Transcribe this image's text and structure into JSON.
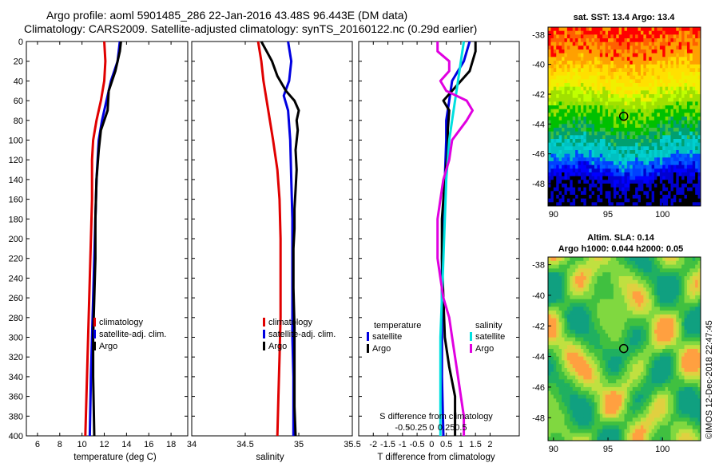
{
  "header": {
    "line1": "Argo profile: aoml 5901485_286 22-Jan-2016 43.48S 96.443E (DM data)",
    "line2": "Climatology: CARS2009. Satellite-adjusted climatology: synTS_20160122.nc (0.29d earlier)"
  },
  "colors": {
    "climatology": "#e00000",
    "satellite": "#0000e0",
    "argo": "#000000",
    "salinity_sat": "#00e0e0",
    "salinity_argo": "#e000e0"
  },
  "chart_data": [
    {
      "type": "line",
      "id": "temperature",
      "xlabel": "temperature (deg C)",
      "ylabel": "",
      "xlim": [
        5,
        19.5
      ],
      "ylim": [
        400,
        0
      ],
      "xticks": [
        6,
        8,
        10,
        12,
        14,
        16,
        18
      ],
      "yticks": [
        0,
        20,
        40,
        60,
        80,
        100,
        120,
        140,
        160,
        180,
        200,
        220,
        240,
        260,
        280,
        300,
        320,
        340,
        360,
        380,
        400
      ],
      "legend": [
        "climatology",
        "satellite-adj. clim.",
        "Argo"
      ],
      "series": [
        {
          "name": "climatology",
          "color": "#e00000",
          "points": [
            [
              12.0,
              0
            ],
            [
              12.1,
              20
            ],
            [
              12.0,
              40
            ],
            [
              11.7,
              60
            ],
            [
              11.3,
              80
            ],
            [
              11.0,
              100
            ],
            [
              10.9,
              120
            ],
            [
              10.9,
              160
            ],
            [
              10.8,
              200
            ],
            [
              10.7,
              240
            ],
            [
              10.6,
              280
            ],
            [
              10.5,
              320
            ],
            [
              10.4,
              360
            ],
            [
              10.3,
              400
            ]
          ]
        },
        {
          "name": "satellite-adj. clim.",
          "color": "#0000e0",
          "points": [
            [
              13.4,
              0
            ],
            [
              13.2,
              20
            ],
            [
              12.6,
              40
            ],
            [
              12.2,
              60
            ],
            [
              11.8,
              80
            ],
            [
              11.5,
              100
            ],
            [
              11.3,
              140
            ],
            [
              11.2,
              180
            ],
            [
              11.1,
              220
            ],
            [
              11.0,
              260
            ],
            [
              10.9,
              300
            ],
            [
              10.8,
              340
            ],
            [
              10.7,
              400
            ]
          ]
        },
        {
          "name": "Argo",
          "color": "#000000",
          "points": [
            [
              13.5,
              0
            ],
            [
              13.4,
              10
            ],
            [
              13.0,
              30
            ],
            [
              12.4,
              50
            ],
            [
              12.3,
              70
            ],
            [
              11.7,
              90
            ],
            [
              11.5,
              110
            ],
            [
              11.3,
              140
            ],
            [
              11.2,
              180
            ],
            [
              11.2,
              220
            ],
            [
              11.1,
              260
            ],
            [
              11.0,
              300
            ],
            [
              11.0,
              340
            ],
            [
              11.1,
              400
            ]
          ]
        }
      ]
    },
    {
      "type": "line",
      "id": "salinity",
      "xlabel": "salinity",
      "ylabel": "",
      "xlim": [
        34,
        35.5
      ],
      "ylim": [
        400,
        0
      ],
      "xticks": [
        34,
        34.5,
        35,
        35.5
      ],
      "xtick_labels": [
        "34",
        "34.5",
        "35",
        "35.5"
      ],
      "legend": [
        "climatology",
        "satellite-adj. clim.",
        "Argo"
      ],
      "series": [
        {
          "name": "climatology",
          "color": "#e00000",
          "points": [
            [
              34.62,
              0
            ],
            [
              34.65,
              20
            ],
            [
              34.67,
              40
            ],
            [
              34.7,
              60
            ],
            [
              34.73,
              80
            ],
            [
              34.76,
              100
            ],
            [
              34.8,
              130
            ],
            [
              34.82,
              160
            ],
            [
              34.83,
              200
            ],
            [
              34.83,
              240
            ],
            [
              34.83,
              280
            ],
            [
              34.82,
              320
            ],
            [
              34.81,
              360
            ],
            [
              34.8,
              400
            ]
          ]
        },
        {
          "name": "satellite-adj. clim.",
          "color": "#0000e0",
          "points": [
            [
              34.9,
              0
            ],
            [
              34.93,
              20
            ],
            [
              34.91,
              40
            ],
            [
              34.86,
              55
            ],
            [
              34.9,
              70
            ],
            [
              34.92,
              100
            ],
            [
              34.93,
              140
            ],
            [
              34.94,
              180
            ],
            [
              34.94,
              220
            ],
            [
              34.94,
              260
            ],
            [
              34.94,
              300
            ],
            [
              34.95,
              340
            ],
            [
              34.95,
              400
            ]
          ]
        },
        {
          "name": "Argo",
          "color": "#000000",
          "points": [
            [
              34.65,
              0
            ],
            [
              34.7,
              10
            ],
            [
              34.75,
              20
            ],
            [
              34.8,
              35
            ],
            [
              34.88,
              50
            ],
            [
              34.96,
              60
            ],
            [
              35.0,
              70
            ],
            [
              34.98,
              80
            ],
            [
              34.99,
              90
            ],
            [
              34.97,
              110
            ],
            [
              34.98,
              130
            ],
            [
              34.97,
              150
            ],
            [
              34.96,
              170
            ],
            [
              34.96,
              190
            ],
            [
              34.95,
              210
            ],
            [
              34.95,
              250
            ],
            [
              34.96,
              290
            ],
            [
              34.96,
              330
            ],
            [
              34.96,
              370
            ],
            [
              34.97,
              400
            ]
          ]
        }
      ]
    },
    {
      "type": "line",
      "id": "difference",
      "xlabel": "T difference from climatology",
      "xlabel_top": "S difference from climatology",
      "xlim": [
        -2.5,
        3
      ],
      "ylim": [
        400,
        0
      ],
      "xticks": [
        -2,
        -1.5,
        -1,
        -0.5,
        0,
        0.5,
        1,
        1.5,
        2
      ],
      "xtick_labels": [
        "-2",
        "-1.5",
        "-1",
        "-0.5",
        "0",
        "0.5",
        "1",
        "1.5",
        "2"
      ],
      "top_xticks": [
        -1,
        -0.5,
        0,
        0.5,
        1
      ],
      "top_xtick_labels": [
        "-0.5",
        "-0.25",
        "0",
        "0.25",
        "0.5"
      ],
      "legend_temperature_title": "temperature",
      "legend_salinity_title": "salinity",
      "legend_temperature": [
        "satellite",
        "Argo"
      ],
      "legend_salinity": [
        "satellite",
        "Argo"
      ],
      "series": [
        {
          "name": "T satellite",
          "color": "#0000e0",
          "points": [
            [
              1.3,
              0
            ],
            [
              1.1,
              20
            ],
            [
              0.7,
              40
            ],
            [
              0.6,
              60
            ],
            [
              0.5,
              80
            ],
            [
              0.5,
              100
            ],
            [
              0.45,
              140
            ],
            [
              0.4,
              180
            ],
            [
              0.35,
              220
            ],
            [
              0.35,
              260
            ],
            [
              0.35,
              300
            ],
            [
              0.35,
              340
            ],
            [
              0.4,
              400
            ]
          ]
        },
        {
          "name": "T Argo",
          "color": "#000000",
          "points": [
            [
              1.5,
              0
            ],
            [
              1.5,
              10
            ],
            [
              1.3,
              30
            ],
            [
              0.7,
              50
            ],
            [
              0.4,
              60
            ],
            [
              0.6,
              70
            ],
            [
              0.55,
              90
            ],
            [
              0.55,
              110
            ],
            [
              0.45,
              140
            ],
            [
              0.35,
              180
            ],
            [
              0.35,
              220
            ],
            [
              0.4,
              260
            ],
            [
              0.45,
              300
            ],
            [
              0.6,
              330
            ],
            [
              0.8,
              360
            ],
            [
              0.8,
              400
            ]
          ]
        },
        {
          "name": "S satellite",
          "color": "#00e0e0",
          "points": [
            [
              1.1,
              0
            ],
            [
              1.0,
              20
            ],
            [
              0.9,
              40
            ],
            [
              0.8,
              60
            ],
            [
              0.7,
              80
            ],
            [
              0.6,
              100
            ],
            [
              0.5,
              140
            ],
            [
              0.45,
              180
            ],
            [
              0.4,
              220
            ],
            [
              0.35,
              260
            ],
            [
              0.3,
              300
            ],
            [
              0.3,
              340
            ],
            [
              0.3,
              400
            ]
          ]
        },
        {
          "name": "S Argo",
          "color": "#e000e0",
          "points": [
            [
              0.2,
              0
            ],
            [
              0.2,
              10
            ],
            [
              0.6,
              20
            ],
            [
              0.6,
              30
            ],
            [
              0.3,
              40
            ],
            [
              0.5,
              50
            ],
            [
              1.2,
              60
            ],
            [
              1.4,
              70
            ],
            [
              1.2,
              80
            ],
            [
              0.7,
              100
            ],
            [
              0.6,
              120
            ],
            [
              0.4,
              140
            ],
            [
              0.3,
              160
            ],
            [
              0.2,
              180
            ],
            [
              0.2,
              220
            ],
            [
              0.3,
              240
            ],
            [
              0.4,
              260
            ],
            [
              0.6,
              280
            ],
            [
              0.7,
              300
            ],
            [
              0.8,
              320
            ],
            [
              0.9,
              340
            ],
            [
              1.0,
              360
            ],
            [
              1.1,
              380
            ],
            [
              1.1,
              400
            ]
          ]
        }
      ]
    },
    {
      "type": "heatmap",
      "id": "sst",
      "title": "sat. SST: 13.4 Argo: 13.4",
      "xlim": [
        89.5,
        103.5
      ],
      "ylim": [
        -49.5,
        -37.5
      ],
      "xticks": [
        90,
        95,
        100
      ],
      "yticks": [
        -38,
        -40,
        -42,
        -44,
        -46,
        -48
      ],
      "marker": [
        96.443,
        -43.48
      ]
    },
    {
      "type": "heatmap",
      "id": "sla",
      "title": "Altim. SLA: 0.14",
      "subtitle": "Argo h1000: 0.044 h2000: 0.05",
      "xlim": [
        89.5,
        103.5
      ],
      "ylim": [
        -49.5,
        -37.5
      ],
      "xticks": [
        90,
        95,
        100
      ],
      "yticks": [
        -38,
        -40,
        -42,
        -44,
        -46,
        -48
      ],
      "marker": [
        96.443,
        -43.48
      ]
    }
  ],
  "credit": "©IMOS 12-Dec-2018 22:47:45"
}
